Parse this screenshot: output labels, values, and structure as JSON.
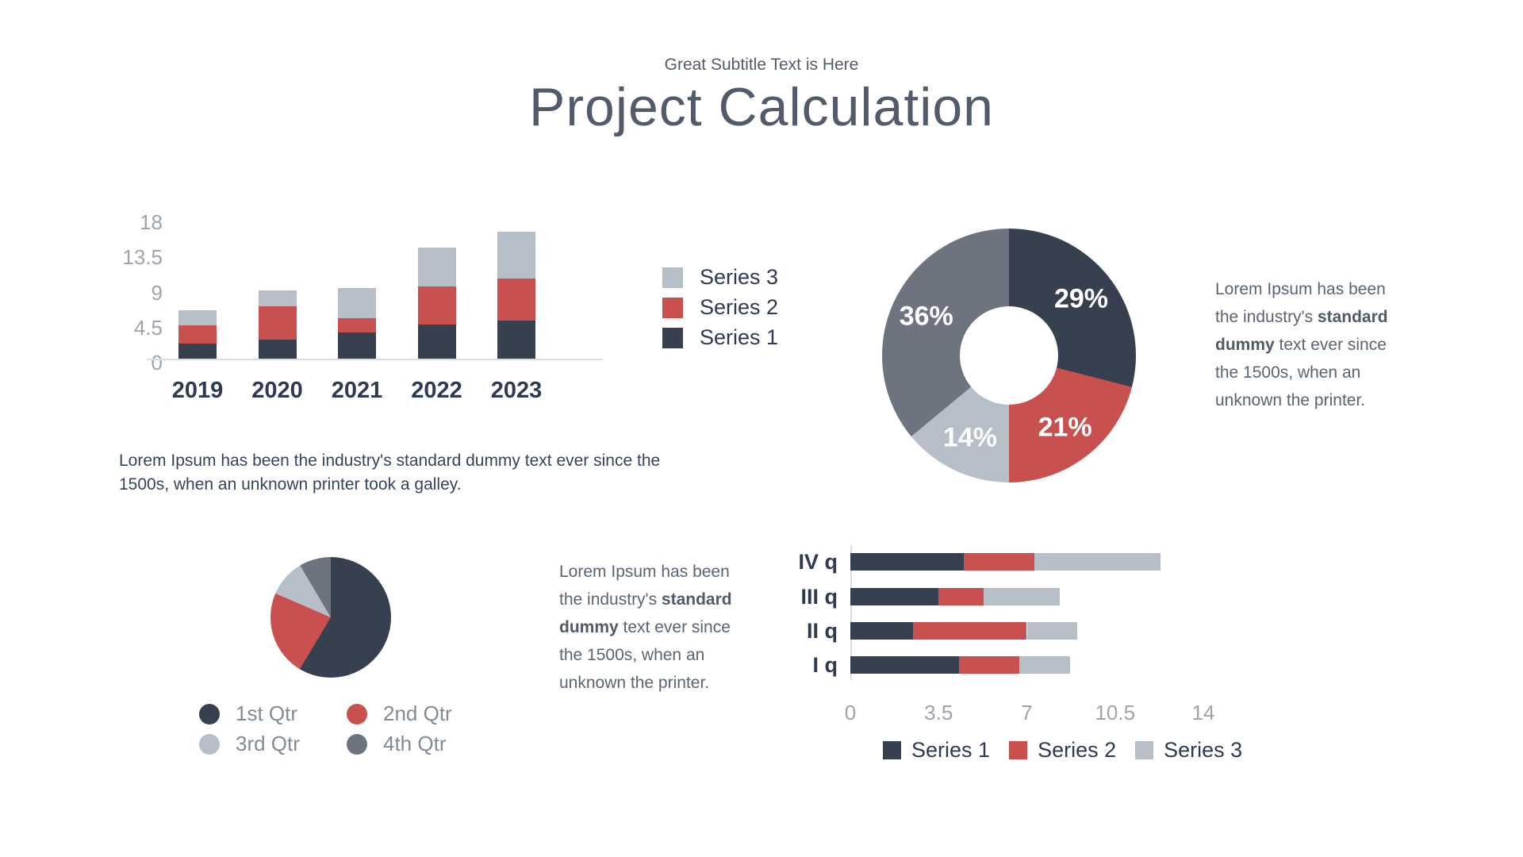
{
  "header": {
    "subtitle": "Great Subtitle Text is Here",
    "title": "Project Calculation"
  },
  "colors": {
    "navy": "#36404E",
    "red": "#C8504E",
    "lightgray": "#B6BFC8",
    "midgray": "#6E7380",
    "axis_line": "#DADDE1",
    "tick_text": "#9EA4AC",
    "label_text": "#2E3A53"
  },
  "texts": {
    "left_paragraph": {
      "line1": "Lorem Ipsum has been the industry's standard dummy text ever since the",
      "line2": "1500s, when an unknown printer took a galley."
    },
    "right_block": {
      "pre": "Lorem Ipsum has been the industry's ",
      "bold": "standard dummy",
      "post": " text ever since the 1500s, when an unknown the printer."
    },
    "center_block": {
      "pre": "Lorem Ipsum has been the industry's ",
      "bold": "standard dummy",
      "post": " text ever since the 1500s, when an unknown the printer."
    }
  },
  "chart_data": [
    {
      "id": "column-chart",
      "type": "bar",
      "stacked": true,
      "orientation": "vertical",
      "categories": [
        "2019",
        "2020",
        "2021",
        "2022",
        "2023"
      ],
      "series": [
        {
          "name": "Series 1",
          "color_key": "navy",
          "values": [
            1.9,
            2.4,
            3.4,
            4.4,
            4.9
          ]
        },
        {
          "name": "Series 2",
          "color_key": "red",
          "values": [
            2.4,
            4.3,
            1.8,
            4.9,
            5.4
          ]
        },
        {
          "name": "Series 3",
          "color_key": "lightgray",
          "values": [
            1.9,
            2.0,
            3.9,
            4.9,
            6.0
          ]
        }
      ],
      "yticks": [
        0,
        4.5,
        9,
        13.5,
        18
      ],
      "ylim": [
        0,
        18
      ],
      "grid": false,
      "legend_position": "right",
      "legend_items": [
        {
          "label": "Series 3",
          "color_key": "lightgray"
        },
        {
          "label": "Series 2",
          "color_key": "red"
        },
        {
          "label": "Series 1",
          "color_key": "navy"
        }
      ]
    },
    {
      "id": "donut-chart",
      "type": "pie",
      "hole": 0.39,
      "labels_inside": true,
      "slices": [
        {
          "label": "29%",
          "value": 29,
          "color_key": "navy"
        },
        {
          "label": "21%",
          "value": 21,
          "color_key": "red"
        },
        {
          "label": "14%",
          "value": 14,
          "color_key": "lightgray"
        },
        {
          "label": "36%",
          "value": 36,
          "color_key": "midgray"
        }
      ]
    },
    {
      "id": "pie-chart",
      "type": "pie",
      "hole": 0,
      "labels_inside": false,
      "slices": [
        {
          "label": "1st Qtr",
          "value": 58.6,
          "color_key": "navy"
        },
        {
          "label": "2nd Qtr",
          "value": 22.9,
          "color_key": "red"
        },
        {
          "label": "3rd Qtr",
          "value": 10.0,
          "color_key": "lightgray"
        },
        {
          "label": "4th Qtr",
          "value": 8.6,
          "color_key": "midgray"
        }
      ],
      "legend_position": "bottom",
      "legend_items": [
        {
          "label": "1st Qtr",
          "color_key": "navy"
        },
        {
          "label": "2nd Qtr",
          "color_key": "red"
        },
        {
          "label": "3rd Qtr",
          "color_key": "lightgray"
        },
        {
          "label": "4th Qtr",
          "color_key": "midgray"
        }
      ]
    },
    {
      "id": "hbar-chart",
      "type": "bar",
      "stacked": true,
      "orientation": "horizontal",
      "categories": [
        "IV q",
        "III q",
        "II q",
        "I q"
      ],
      "series": [
        {
          "name": "Series 1",
          "color_key": "navy",
          "values": [
            4.5,
            3.5,
            2.5,
            4.3
          ]
        },
        {
          "name": "Series 2",
          "color_key": "red",
          "values": [
            2.8,
            1.8,
            4.5,
            2.4
          ]
        },
        {
          "name": "Series 3",
          "color_key": "lightgray",
          "values": [
            5.0,
            3.0,
            2.0,
            2.0
          ]
        }
      ],
      "xticks": [
        0,
        3.5,
        7,
        10.5,
        14
      ],
      "xlim": [
        0,
        14
      ],
      "grid": false,
      "legend_position": "bottom",
      "legend_items": [
        {
          "label": "Series 1",
          "color_key": "navy"
        },
        {
          "label": "Series 2",
          "color_key": "red"
        },
        {
          "label": "Series 3",
          "color_key": "lightgray"
        }
      ]
    }
  ]
}
